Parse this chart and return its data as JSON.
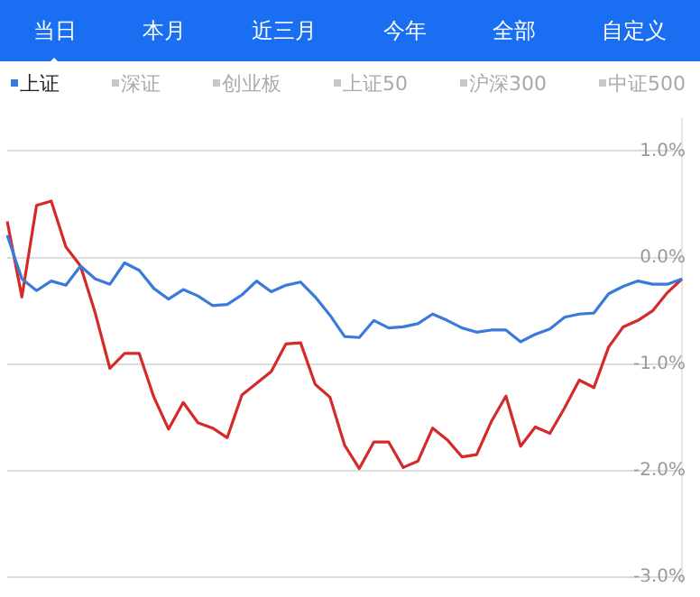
{
  "chart_data": {
    "type": "line",
    "annotations": [
      "当日",
      "本月",
      "近三月",
      "今年",
      "全部",
      "自定义"
    ],
    "categories": [
      null,
      null,
      null,
      null,
      null,
      null,
      null,
      null,
      null,
      null,
      null,
      null,
      null,
      null,
      null,
      null,
      null,
      null,
      null,
      null,
      null,
      null,
      null,
      null,
      null,
      null,
      null,
      null,
      null,
      null,
      null,
      null,
      null,
      null,
      null,
      null,
      null,
      null,
      null,
      null,
      null,
      null,
      null,
      null,
      null,
      null,
      null
    ],
    "ylim": [
      -3.05,
      1.3
    ],
    "yticks": [
      {
        "value": 1,
        "label": "1.0%"
      },
      {
        "value": 0,
        "label": "0.0%"
      },
      {
        "value": -1,
        "label": "-1.0%"
      },
      {
        "value": -2,
        "label": "-2.0%"
      },
      {
        "value": -3,
        "label": "-3.0%"
      }
    ],
    "tick_labels": "y",
    "grid": "y",
    "legend": "top left",
    "marker": "none",
    "line_style": "solid",
    "series": [
      {
        "name": "上证",
        "color": "#3a7bd9",
        "values": [
          0.21,
          -0.2,
          -0.31,
          -0.22,
          -0.26,
          -0.08,
          -0.2,
          -0.25,
          -0.05,
          -0.12,
          -0.29,
          -0.39,
          -0.3,
          -0.36,
          -0.45,
          -0.44,
          -0.35,
          -0.22,
          -0.32,
          -0.26,
          -0.23,
          -0.37,
          -0.54,
          -0.74,
          -0.75,
          -0.59,
          -0.66,
          -0.65,
          -0.62,
          -0.53,
          -0.59,
          -0.66,
          -0.7,
          -0.68,
          -0.68,
          -0.79,
          -0.72,
          -0.67,
          -0.56,
          -0.53,
          -0.52,
          -0.34,
          -0.27,
          -0.22,
          -0.25,
          -0.25,
          -0.2
        ]
      },
      {
        "color": "#d42a2a",
        "values": [
          0.34,
          -0.37,
          0.49,
          0.53,
          0.1,
          -0.08,
          -0.52,
          -1.04,
          -0.9,
          -0.9,
          -1.31,
          -1.61,
          -1.36,
          -1.55,
          -1.6,
          -1.69,
          -1.29,
          -1.18,
          -1.07,
          -0.81,
          -0.8,
          -1.19,
          -1.31,
          -1.76,
          -1.98,
          -1.73,
          -1.73,
          -1.97,
          -1.91,
          -1.6,
          -1.71,
          -1.87,
          -1.85,
          -1.54,
          -1.3,
          -1.77,
          -1.59,
          -1.65,
          -1.41,
          -1.15,
          -1.22,
          -0.84,
          -0.65,
          -0.59,
          -0.5,
          -0.33,
          -0.2
        ]
      },
      {
        "name": "深证",
        "color": "#c8c8c8",
        "values": [
          null,
          null,
          null,
          null,
          null,
          null,
          null,
          null,
          null,
          null,
          null,
          null,
          null,
          null,
          null,
          null,
          null,
          null,
          null,
          null,
          null,
          null,
          null,
          null,
          null,
          null,
          null,
          null,
          null,
          null,
          null,
          null,
          null,
          null,
          null,
          null,
          null,
          null,
          null,
          null,
          null,
          null,
          null,
          null,
          null,
          null,
          null
        ]
      },
      {
        "name": "创业板",
        "color": "#c8c8c8",
        "values": [
          null,
          null,
          null,
          null,
          null,
          null,
          null,
          null,
          null,
          null,
          null,
          null,
          null,
          null,
          null,
          null,
          null,
          null,
          null,
          null,
          null,
          null,
          null,
          null,
          null,
          null,
          null,
          null,
          null,
          null,
          null,
          null,
          null,
          null,
          null,
          null,
          null,
          null,
          null,
          null,
          null,
          null,
          null,
          null,
          null,
          null,
          null
        ]
      },
      {
        "name": "上证50",
        "color": "#c8c8c8",
        "values": [
          null,
          null,
          null,
          null,
          null,
          null,
          null,
          null,
          null,
          null,
          null,
          null,
          null,
          null,
          null,
          null,
          null,
          null,
          null,
          null,
          null,
          null,
          null,
          null,
          null,
          null,
          null,
          null,
          null,
          null,
          null,
          null,
          null,
          null,
          null,
          null,
          null,
          null,
          null,
          null,
          null,
          null,
          null,
          null,
          null,
          null,
          null
        ]
      },
      {
        "name": "沪深300",
        "color": "#c8c8c8",
        "values": [
          null,
          null,
          null,
          null,
          null,
          null,
          null,
          null,
          null,
          null,
          null,
          null,
          null,
          null,
          null,
          null,
          null,
          null,
          null,
          null,
          null,
          null,
          null,
          null,
          null,
          null,
          null,
          null,
          null,
          null,
          null,
          null,
          null,
          null,
          null,
          null,
          null,
          null,
          null,
          null,
          null,
          null,
          null,
          null,
          null,
          null,
          null
        ]
      },
      {
        "name": "中证500",
        "color": "#c8c8c8",
        "values": [
          null,
          null,
          null,
          null,
          null,
          null,
          null,
          null,
          null,
          null,
          null,
          null,
          null,
          null,
          null,
          null,
          null,
          null,
          null,
          null,
          null,
          null,
          null,
          null,
          null,
          null,
          null,
          null,
          null,
          null,
          null,
          null,
          null,
          null,
          null,
          null,
          null,
          null,
          null,
          null,
          null,
          null,
          null,
          null,
          null,
          null,
          null
        ]
      }
    ]
  }
}
